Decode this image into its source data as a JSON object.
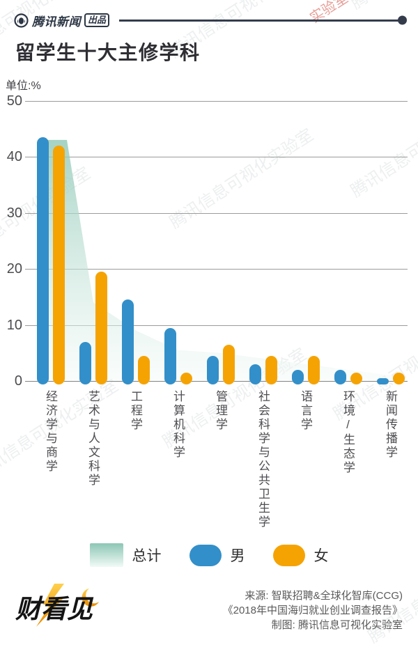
{
  "header": {
    "brand": "腾讯新闻",
    "badge": "出品"
  },
  "watermark": {
    "text": "腾讯信息可视化实验室"
  },
  "chart_data": {
    "type": "bar",
    "title": "留学生十大主修学科",
    "unit_label": "单位:%",
    "categories": [
      "经济学与商学",
      "艺术与人文科学",
      "工程学",
      "计算机科学",
      "管理学",
      "社会科学与公共卫生学",
      "语言学",
      "环境/生态学",
      "新闻传播学"
    ],
    "series": [
      {
        "name": "总计",
        "type": "area",
        "color_top": "#8cc6b4",
        "color_bottom": "#f2faf7",
        "values": [
          43,
          14,
          9,
          5.5,
          5,
          4,
          3,
          2,
          1
        ]
      },
      {
        "name": "男",
        "type": "bar",
        "color": "#338fc9",
        "values": [
          43.5,
          7,
          14.5,
          9.5,
          4.5,
          3,
          2,
          2,
          0.5
        ]
      },
      {
        "name": "女",
        "type": "bar",
        "color": "#f5a303",
        "values": [
          42,
          19.5,
          4.5,
          1.5,
          6.5,
          4.5,
          4.5,
          1.5,
          1.5
        ]
      }
    ],
    "y_ticks": [
      50,
      40,
      30,
      20,
      10,
      0
    ],
    "ylim": [
      0,
      50
    ],
    "grid": true,
    "legend_position": "bottom"
  },
  "footer": {
    "logo_text": "财看见",
    "source_lines": [
      "来源: 智联招聘&全球化智库(CCG)",
      "《2018年中国海归就业创业调查报告》",
      "制图: 腾讯信息可视化实验室"
    ]
  }
}
